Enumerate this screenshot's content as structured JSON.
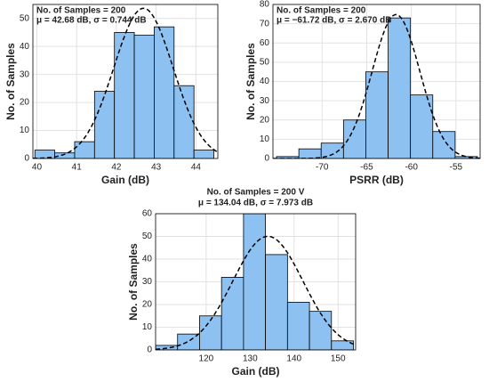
{
  "chart_data": [
    {
      "type": "histogram",
      "xlabel": "Gain (dB)",
      "ylabel": "No. of Samples",
      "annotation": [
        "No. of Samples = 200",
        "μ = 42.68 dB, σ = 0.744 dB"
      ],
      "fit": {
        "mean": 42.68,
        "std": 0.744,
        "count": 200
      },
      "bins": [
        39.95,
        40.45,
        40.95,
        41.45,
        41.95,
        42.45,
        42.95,
        43.45,
        43.95,
        44.45
      ],
      "values": [
        3,
        2,
        6,
        24,
        45,
        44,
        47,
        26,
        3
      ],
      "color": "#8cc1f2",
      "xlim": [
        39.9,
        44.55
      ],
      "xticks": [
        40,
        41,
        42,
        43,
        44
      ],
      "ylim": [
        0,
        55
      ],
      "yticks": [
        0,
        10,
        20,
        30,
        40,
        50
      ],
      "grid": true
    },
    {
      "type": "histogram",
      "xlabel": "PSRR  (dB)",
      "ylabel": "No. of Samples",
      "annotation": [
        "No. of Samples = 200",
        "μ = −61.72 dB, σ = 2.670 dB"
      ],
      "fit": {
        "mean": -61.72,
        "std": 2.67,
        "count": 200
      },
      "bins": [
        -75.1,
        -72.6,
        -70.1,
        -67.6,
        -65.1,
        -62.6,
        -60.1,
        -57.6,
        -55.1,
        -52.6
      ],
      "values": [
        1,
        5,
        8,
        20,
        45,
        73,
        33,
        14,
        1
      ],
      "color": "#8cc1f2",
      "xlim": [
        -75.5,
        -52.3
      ],
      "xticks": [
        -70,
        -65,
        -60,
        -55
      ],
      "ylim": [
        0,
        80
      ],
      "yticks": [
        0,
        10,
        20,
        30,
        40,
        50,
        60,
        70,
        80
      ],
      "grid": true
    },
    {
      "type": "histogram",
      "xlabel": "Gain (dB)",
      "ylabel": "No. of Samples",
      "annotation": [
        "No. of Samples = 200 V",
        "μ = 134.04 dB, σ = 7.973 dB"
      ],
      "fit": {
        "mean": 134.04,
        "std": 7.973,
        "count": 200
      },
      "bins": [
        108.5,
        113.5,
        118.5,
        123.5,
        128.5,
        133.5,
        138.5,
        143.5,
        148.5,
        153.5
      ],
      "values": [
        2,
        7,
        15,
        32,
        60,
        42,
        21,
        17,
        4
      ],
      "color": "#8cc1f2",
      "xlim": [
        108.5,
        154
      ],
      "xticks": [
        120,
        130,
        140,
        150
      ],
      "ylim": [
        0,
        60
      ],
      "yticks": [
        0,
        10,
        20,
        30,
        40,
        50,
        60
      ],
      "grid": true
    }
  ]
}
